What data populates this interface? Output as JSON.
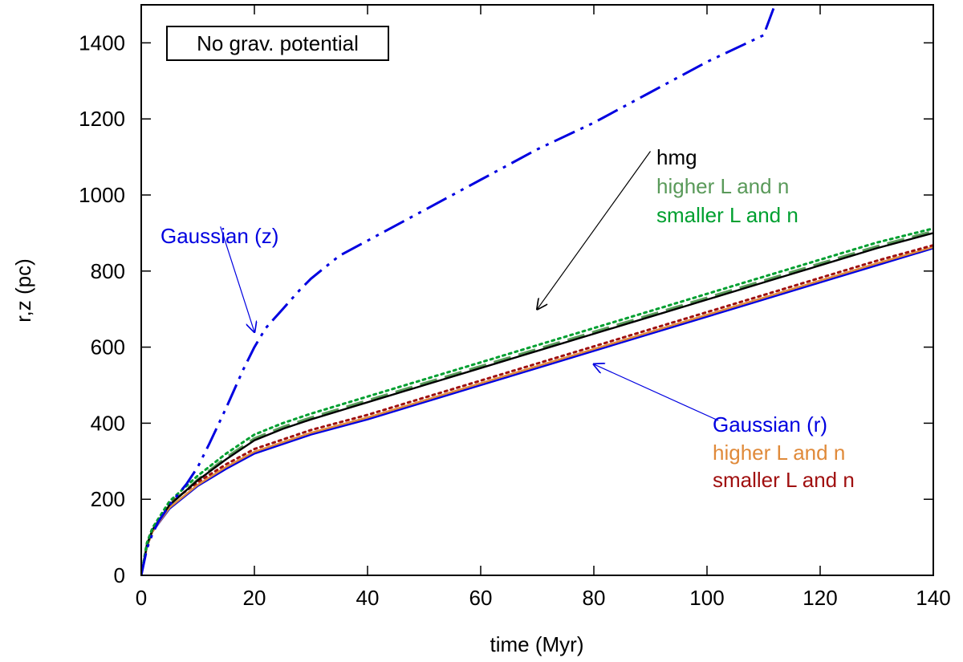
{
  "chart_data": {
    "type": "line",
    "title": "",
    "xlabel": "time (Myr)",
    "ylabel": "r,z (pc)",
    "xlim": [
      0,
      140
    ],
    "ylim": [
      0,
      1500
    ],
    "xticks": [
      0,
      20,
      40,
      60,
      80,
      100,
      120,
      140
    ],
    "yticks": [
      0,
      200,
      400,
      600,
      800,
      1000,
      1200,
      1400
    ],
    "grid": false,
    "inset_label": "No grav. potential",
    "series": [
      {
        "name": "Gaussian (z)",
        "color": "#0000e0",
        "style": "dash-dot-dot",
        "x": [
          0,
          1,
          2,
          3,
          5,
          8,
          10,
          12,
          15,
          18,
          20,
          22,
          25,
          28,
          30,
          35,
          40,
          50,
          60,
          70,
          80,
          90,
          100,
          110,
          112
        ],
        "y": [
          0,
          70,
          110,
          140,
          185,
          240,
          285,
          345,
          440,
          540,
          600,
          650,
          700,
          750,
          780,
          840,
          880,
          960,
          1040,
          1120,
          1190,
          1270,
          1350,
          1420,
          1500
        ]
      },
      {
        "name": "hmg",
        "color": "#000000",
        "style": "solid",
        "x": [
          0,
          1,
          2,
          5,
          10,
          15,
          20,
          25,
          30,
          40,
          50,
          60,
          70,
          80,
          90,
          100,
          110,
          120,
          130,
          140
        ],
        "y": [
          0,
          80,
          120,
          185,
          250,
          305,
          355,
          385,
          410,
          455,
          500,
          545,
          590,
          635,
          680,
          725,
          770,
          815,
          860,
          900
        ]
      },
      {
        "name": "higher L and n",
        "color": "#5a9a5a",
        "style": "long-dash",
        "x": [
          0,
          1,
          2,
          5,
          10,
          15,
          20,
          25,
          30,
          40,
          50,
          60,
          70,
          80,
          90,
          100,
          110,
          120,
          130,
          140
        ],
        "y": [
          0,
          80,
          120,
          185,
          252,
          310,
          360,
          390,
          415,
          460,
          505,
          550,
          595,
          640,
          685,
          730,
          775,
          820,
          865,
          905
        ]
      },
      {
        "name": "smaller L and n",
        "color": "#00a030",
        "style": "dotted",
        "x": [
          0,
          1,
          2,
          5,
          10,
          15,
          20,
          25,
          30,
          40,
          50,
          60,
          70,
          80,
          90,
          100,
          110,
          120,
          130,
          140
        ],
        "y": [
          0,
          85,
          125,
          195,
          262,
          320,
          370,
          400,
          425,
          470,
          515,
          560,
          605,
          650,
          695,
          740,
          785,
          830,
          875,
          912
        ]
      },
      {
        "name": "Gaussian (r)",
        "color": "#0000e0",
        "style": "solid",
        "x": [
          0,
          1,
          2,
          5,
          10,
          15,
          20,
          25,
          30,
          40,
          50,
          60,
          70,
          80,
          90,
          100,
          110,
          120,
          130,
          140
        ],
        "y": [
          0,
          75,
          115,
          175,
          235,
          280,
          320,
          345,
          370,
          410,
          455,
          500,
          545,
          590,
          635,
          680,
          725,
          770,
          815,
          860
        ]
      },
      {
        "name": "higher L and n",
        "color": "#e08a3a",
        "style": "solid",
        "x": [
          0,
          1,
          2,
          5,
          10,
          15,
          20,
          25,
          30,
          40,
          50,
          60,
          70,
          80,
          90,
          100,
          110,
          120,
          130,
          140
        ],
        "y": [
          0,
          75,
          115,
          178,
          238,
          285,
          325,
          350,
          375,
          415,
          460,
          505,
          550,
          595,
          640,
          685,
          730,
          775,
          820,
          863
        ]
      },
      {
        "name": "smaller L and n",
        "color": "#a01010",
        "style": "dotted",
        "x": [
          0,
          1,
          2,
          5,
          10,
          15,
          20,
          25,
          30,
          40,
          50,
          60,
          70,
          80,
          90,
          100,
          110,
          120,
          130,
          140
        ],
        "y": [
          0,
          85,
          125,
          190,
          245,
          292,
          332,
          357,
          382,
          422,
          467,
          512,
          557,
          602,
          647,
          692,
          737,
          782,
          827,
          868
        ]
      }
    ],
    "annotations": [
      {
        "text": "Gaussian (z)",
        "color": "#0000e0",
        "arrow_from": [
          14,
          917
        ],
        "arrow_to": [
          20,
          640
        ]
      },
      {
        "text": "Gaussian (r)",
        "color": "#0000e0",
        "arrow_from": [
          102,
          407
        ],
        "arrow_to": [
          80,
          555
        ]
      },
      {
        "text": "hmg",
        "color": "#000000",
        "arrow_from": [
          90,
          1115
        ],
        "arrow_to": [
          70,
          700
        ]
      }
    ],
    "legend_groups": [
      {
        "entries": [
          {
            "label": "hmg",
            "color": "#000000"
          },
          {
            "label": "higher L and n",
            "color": "#5a9a5a"
          },
          {
            "label": "smaller L and n",
            "color": "#00a030"
          }
        ]
      },
      {
        "entries": [
          {
            "label": "Gaussian (r)",
            "color": "#0000e0"
          },
          {
            "label": "higher L and n",
            "color": "#e08a3a"
          },
          {
            "label": "smaller L and n",
            "color": "#a01010"
          }
        ]
      }
    ]
  }
}
